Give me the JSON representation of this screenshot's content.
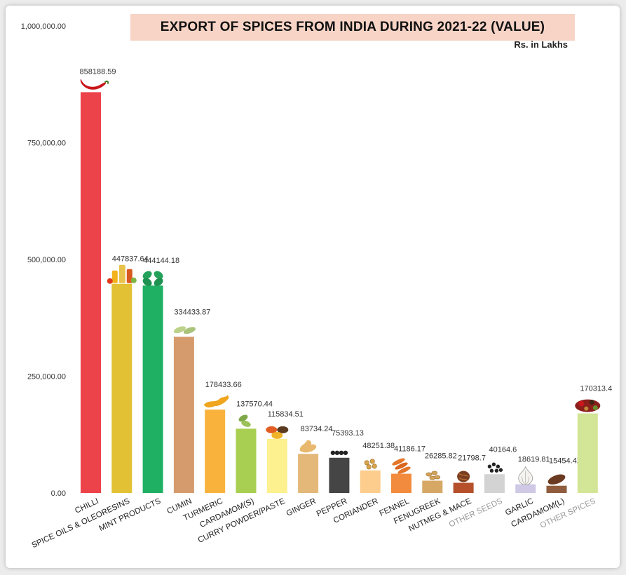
{
  "chart_data": {
    "type": "bar",
    "title": "EXPORT OF SPICES FROM INDIA DURING 2021-22 (VALUE)",
    "subtitle": "Rs. in Lakhs",
    "ylim": [
      0,
      1000000
    ],
    "yticks": [
      "0.00",
      "250,000.00",
      "500,000.00",
      "750,000.00",
      "1,000,000.00"
    ],
    "ytick_values": [
      0,
      250000,
      500000,
      750000,
      1000000
    ],
    "grid": false,
    "categories": [
      "CHILLI",
      "SPICE OILS & OLEORESINS",
      "MINT PRODUCTS",
      "CUMIN",
      "TURMERIC",
      "CARDAMOM(S)",
      "CURRY POWDER/PASTE",
      "GINGER",
      "PEPPER",
      "CORIANDER",
      "FENNEL",
      "FENUGREEK",
      "NUTMEG & MACE",
      "OTHER SEEDS",
      "GARLIC",
      "CARDAMOM(L)",
      "OTHER SPICES"
    ],
    "values": [
      858188.59,
      447837.64,
      444144.18,
      334433.87,
      178433.66,
      137570.44,
      115834.51,
      83734.24,
      75393.13,
      48251.38,
      41186.17,
      26285.82,
      21798.7,
      40164.6,
      18619.81,
      15454.42,
      170313.4
    ],
    "value_labels": [
      "858188.59",
      "447837.64",
      "444144.18",
      "334433.87",
      "178433.66",
      "137570.44",
      "115834.51",
      "83734.24",
      "75393.13",
      "48251.38",
      "41186.17",
      "26285.82",
      "21798.7",
      "40164.6",
      "18619.81",
      "15454.42",
      "170313.4"
    ],
    "colors": [
      "#ec4249",
      "#e2c234",
      "#1fb064",
      "#d59b6c",
      "#f9b33d",
      "#a8cf52",
      "#fdf08e",
      "#e3b878",
      "#454545",
      "#fdcd8d",
      "#f28b3d",
      "#d7a865",
      "#b5502b",
      "#d3d3d3",
      "#cfc9e6",
      "#8f5d3e",
      "#d3e596"
    ],
    "grey_label_indices": [
      13,
      16
    ],
    "icons": [
      "chilli-icon",
      "oil-bottles-icon",
      "mint-leaf-icon",
      "cumin-seeds-icon",
      "turmeric-root-icon",
      "cardamom-pod-icon",
      "curry-powder-bowls-icon",
      "ginger-root-icon",
      "pepper-corns-icon",
      "coriander-seeds-icon",
      "fennel-seeds-icon",
      "fenugreek-seeds-icon",
      "nutmeg-icon",
      "seeds-icon",
      "garlic-icon",
      "black-cardamom-icon",
      "mixed-spices-icon"
    ]
  }
}
